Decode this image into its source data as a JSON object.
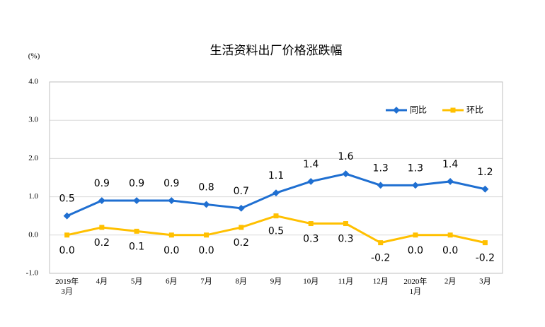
{
  "chart_data": {
    "type": "line",
    "title": "生活资料出厂价格涨跌幅",
    "y_axis_label": "(%)",
    "categories": [
      "2019年\n3月",
      "4月",
      "5月",
      "6月",
      "7月",
      "8月",
      "9月",
      "10月",
      "11月",
      "12月",
      "2020年\n1月",
      "2月",
      "3月"
    ],
    "series": [
      {
        "name": "同比",
        "color": "#1f6fd1",
        "values": [
          0.5,
          0.9,
          0.9,
          0.9,
          0.8,
          0.7,
          1.1,
          1.4,
          1.6,
          1.3,
          1.3,
          1.4,
          1.2
        ],
        "value_labels": [
          "0.5",
          "0.9",
          "0.9",
          "0.9",
          "0.8",
          "0.7",
          "1.1",
          "1.4",
          "1.6",
          "1.3",
          "1.3",
          "1.4",
          "1.2"
        ]
      },
      {
        "name": "环比",
        "color": "#ffc000",
        "values": [
          0.0,
          0.2,
          0.1,
          0.0,
          0.0,
          0.2,
          0.5,
          0.3,
          0.3,
          -0.2,
          0.0,
          0.0,
          -0.2
        ],
        "value_labels": [
          "0.0",
          "0.2",
          "0.1",
          "0.0",
          "0.0",
          "0.2",
          "0.5",
          "0.3",
          "0.3",
          "-0.2",
          "0.0",
          "0.0",
          "-0.2"
        ]
      }
    ],
    "ylim": [
      -1.0,
      4.0
    ],
    "yticks": [
      {
        "value": -1,
        "label": "-1.0"
      },
      {
        "value": 0,
        "label": "0.0"
      },
      {
        "value": 1,
        "label": "1.0"
      },
      {
        "value": 2,
        "label": "2.0"
      },
      {
        "value": 3,
        "label": "3.0"
      },
      {
        "value": 4,
        "label": "4.0"
      }
    ],
    "grid": true,
    "legend": "top-right"
  }
}
